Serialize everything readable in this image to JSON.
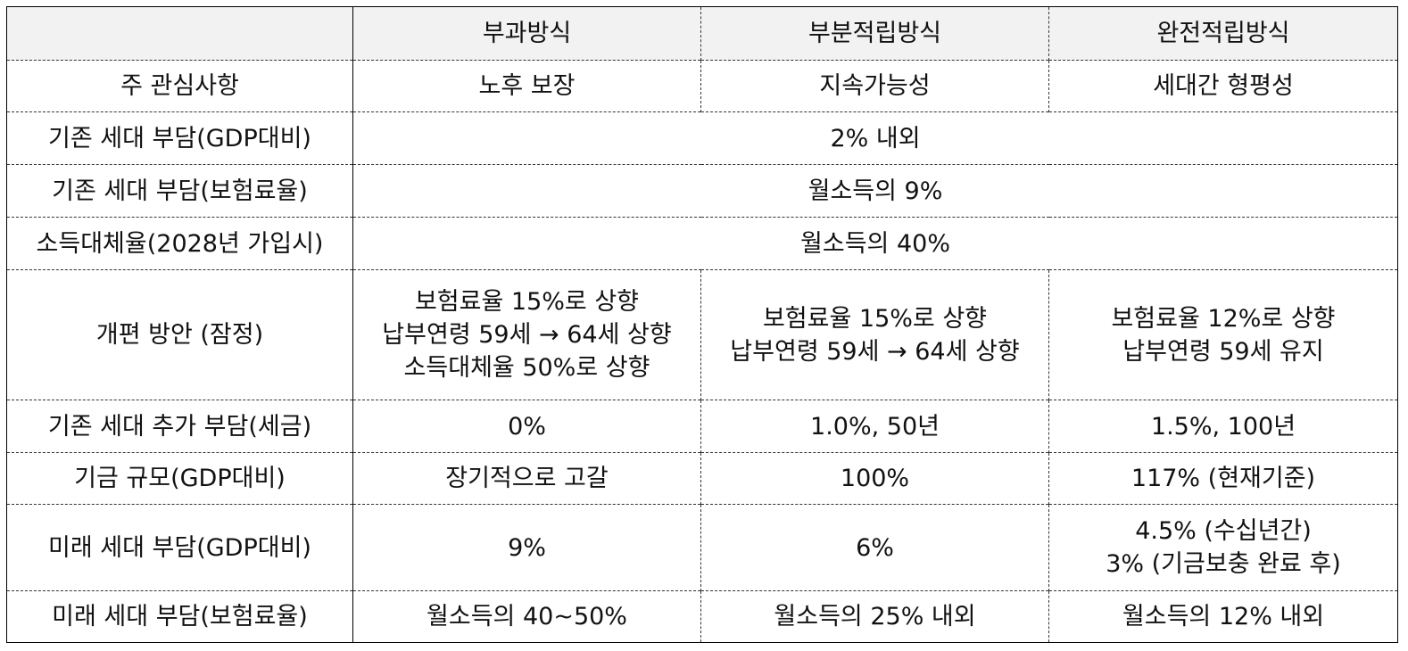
{
  "columns": [
    "",
    "부과방식",
    "부분적립방식",
    "완전적립방식"
  ],
  "rows": [
    {
      "label": "주 관심사항",
      "cells": [
        "노후 보장",
        "지속가능성",
        "세대간 형평성"
      ]
    },
    {
      "label": "기존 세대 부담(GDP대비)",
      "span": "2% 내외"
    },
    {
      "label": "기존 세대 부담(보험료율)",
      "span": "월소득의 9%"
    },
    {
      "label": "소득대체율(2028년 가입시)",
      "span": "월소득의 40%"
    },
    {
      "label": "개편 방안 (잠정)",
      "cells_lines": [
        [
          "보험료율 15%로 상향",
          "납부연령 59세 → 64세 상향",
          "소득대체율 50%로 상향"
        ],
        [
          "보험료율 15%로 상향",
          "납부연령 59세 → 64세 상향"
        ],
        [
          "보험료율 12%로 상향",
          "납부연령 59세 유지"
        ]
      ]
    },
    {
      "label": "기존 세대 추가 부담(세금)",
      "cells": [
        "0%",
        "1.0%, 50년",
        "1.5%, 100년"
      ]
    },
    {
      "label": "기금 규모(GDP대비)",
      "cells": [
        "장기적으로 고갈",
        "100%",
        "117% (현재기준)"
      ]
    },
    {
      "label": "미래 세대 부담(GDP대비)",
      "cells_lines": [
        [
          "9%"
        ],
        [
          "6%"
        ],
        [
          "4.5% (수십년간)",
          "3% (기금보충 완료 후)"
        ]
      ]
    },
    {
      "label": "미래 세대 부담(보험료율)",
      "cells": [
        "월소득의 40~50%",
        "월소득의 25% 내외",
        "월소득의 12% 내외"
      ]
    }
  ]
}
